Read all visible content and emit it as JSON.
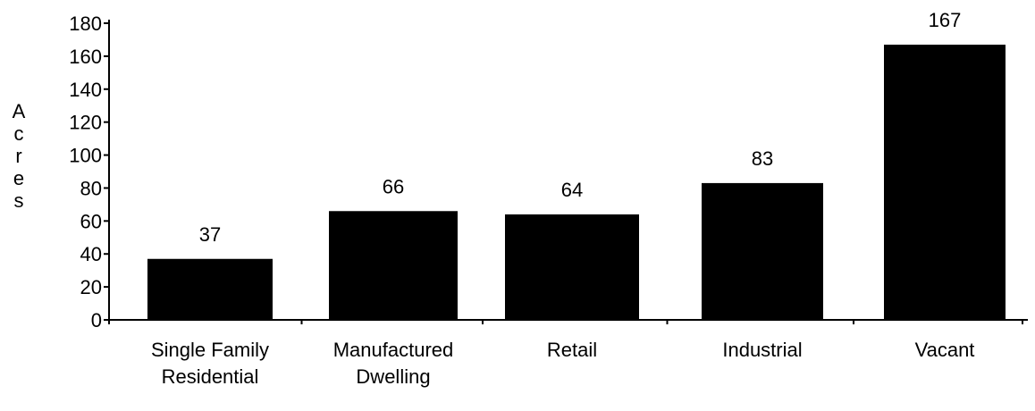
{
  "chart_data": {
    "type": "bar",
    "title": "",
    "xlabel": "",
    "ylabel": "Acres",
    "ylim": [
      0,
      180
    ],
    "yticks": [
      0,
      20,
      40,
      60,
      80,
      100,
      120,
      140,
      160,
      180
    ],
    "grid": false,
    "legend": "none",
    "bar_color": "#000000",
    "categories": [
      [
        "Single  Family",
        "Residential"
      ],
      [
        "Manufactured",
        "Dwelling"
      ],
      [
        "Retail"
      ],
      [
        "Industrial"
      ],
      [
        "Vacant"
      ]
    ],
    "values": [
      37,
      66,
      64,
      83,
      167
    ],
    "data_labels": [
      "37",
      "66",
      "64",
      "83",
      "167"
    ]
  }
}
